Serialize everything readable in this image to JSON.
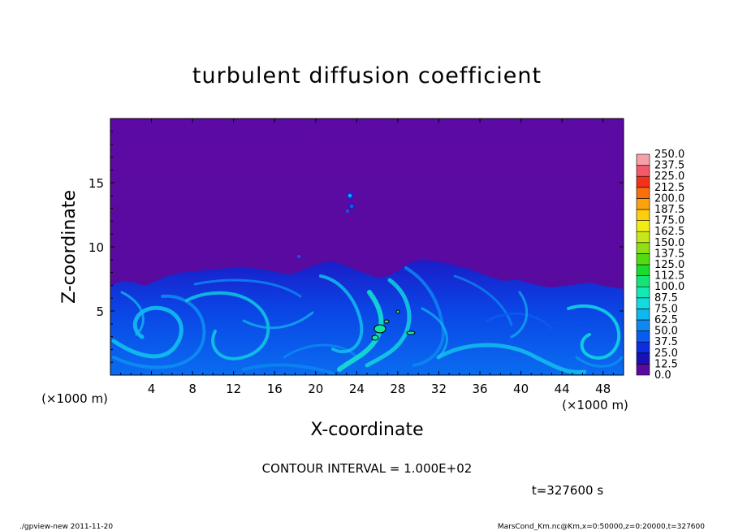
{
  "chart_data": {
    "type": "heatmap",
    "title": "turbulent diffusion coefficient",
    "xlabel": "X-coordinate",
    "ylabel": "Z-coordinate",
    "x_unit": "(×1000 m)",
    "y_unit": "(×1000 m)",
    "xlim": [
      0,
      50
    ],
    "ylim": [
      0,
      20
    ],
    "x_ticks": [
      "4",
      "8",
      "12",
      "16",
      "20",
      "24",
      "28",
      "32",
      "36",
      "40",
      "44",
      "48"
    ],
    "y_ticks": [
      "5",
      "10",
      "15"
    ],
    "colorbar": {
      "levels": [
        "0.0",
        "12.5",
        "25.0",
        "37.5",
        "50.0",
        "62.5",
        "75.0",
        "87.5",
        "100.0",
        "112.5",
        "125.0",
        "137.5",
        "150.0",
        "162.5",
        "175.0",
        "187.5",
        "200.0",
        "212.5",
        "225.0",
        "237.5",
        "250.0"
      ],
      "colors": [
        "#5a0aa0",
        "#1a10b8",
        "#0a2ee0",
        "#0a5cf0",
        "#0c8af2",
        "#10b6ee",
        "#12dce0",
        "#14e8b4",
        "#14e478",
        "#18dc2e",
        "#52dc10",
        "#8ee014",
        "#c6e818",
        "#f2ec14",
        "#fbcf0c",
        "#fba20c",
        "#f8700c",
        "#f2321c",
        "#f25a6a",
        "#f6a0a8"
      ]
    },
    "contour_interval": "CONTOUR INTERVAL = 1.000E+02",
    "time_label": "t=327600  s",
    "grid": false
  },
  "footer": {
    "left": "./gpview-new   2011-11-20",
    "right": "MarsCond_Km.nc@Km,x=0:50000,z=0:20000,t=327600"
  }
}
